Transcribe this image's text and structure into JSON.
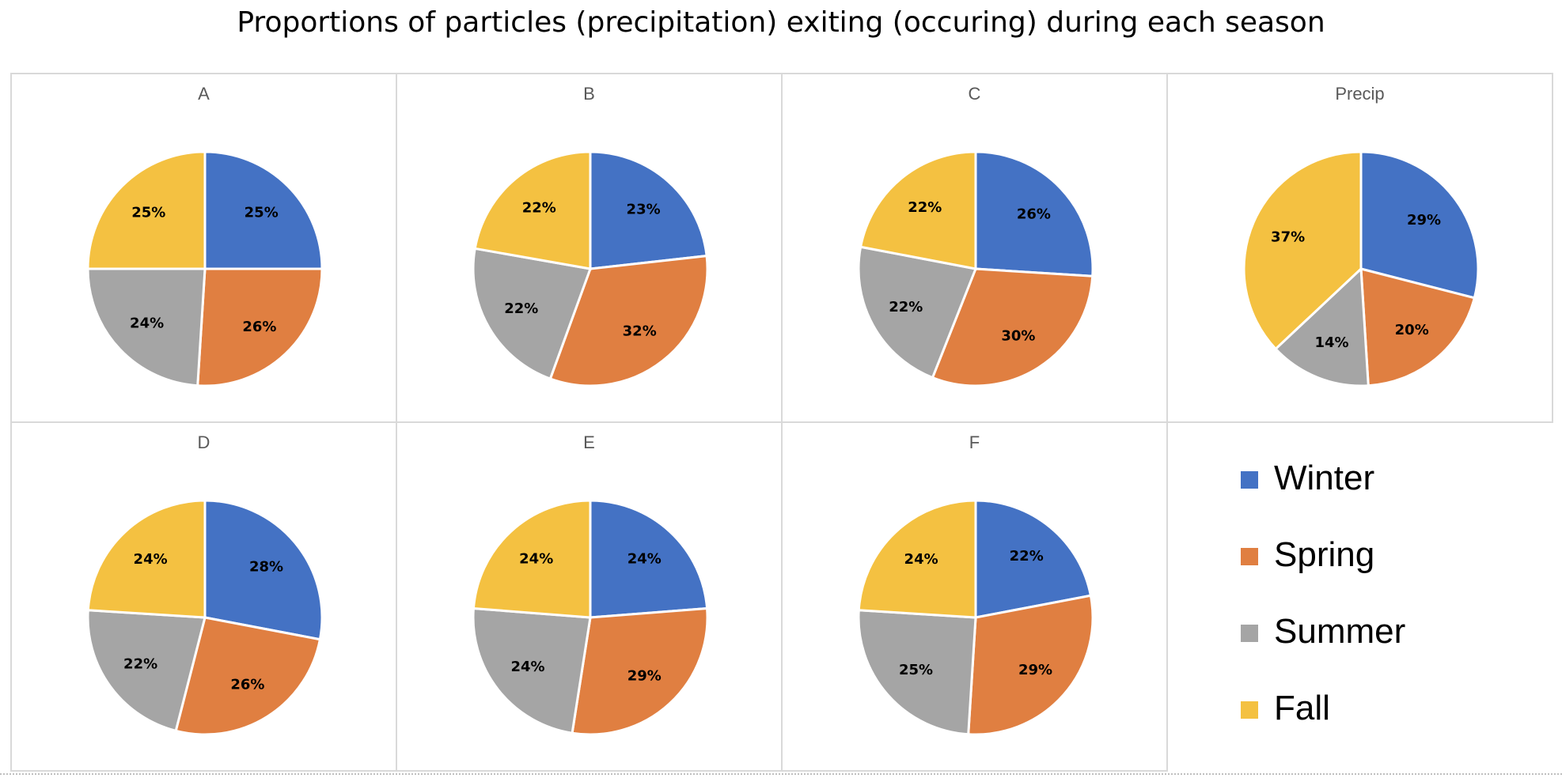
{
  "title": "Proportions of particles (precipitation) exiting (occuring) during each season",
  "series_colors": {
    "Winter": "#4472C4",
    "Spring": "#E07F41",
    "Summer": "#A5A5A5",
    "Fall": "#F4C141"
  },
  "legend": {
    "placement": "bottom-right",
    "items": [
      "Winter",
      "Spring",
      "Summer",
      "Fall"
    ]
  },
  "chart_data": [
    {
      "type": "pie",
      "title": "A",
      "categories": [
        "Winter",
        "Spring",
        "Summer",
        "Fall"
      ],
      "values": [
        25,
        26,
        24,
        25
      ],
      "labels": [
        "25%",
        "26%",
        "24%",
        "25%"
      ]
    },
    {
      "type": "pie",
      "title": "B",
      "categories": [
        "Winter",
        "Spring",
        "Summer",
        "Fall"
      ],
      "values": [
        23,
        32,
        22,
        22
      ],
      "labels": [
        "23%",
        "32%",
        "22%",
        "22%"
      ]
    },
    {
      "type": "pie",
      "title": "C",
      "categories": [
        "Winter",
        "Spring",
        "Summer",
        "Fall"
      ],
      "values": [
        26,
        30,
        22,
        22
      ],
      "labels": [
        "26%",
        "30%",
        "22%",
        "22%"
      ]
    },
    {
      "type": "pie",
      "title": "Precip",
      "categories": [
        "Winter",
        "Spring",
        "Summer",
        "Fall"
      ],
      "values": [
        29,
        20,
        14,
        37
      ],
      "labels": [
        "29%",
        "20%",
        "14%",
        "37%"
      ]
    },
    {
      "type": "pie",
      "title": "D",
      "categories": [
        "Winter",
        "Spring",
        "Summer",
        "Fall"
      ],
      "values": [
        28,
        26,
        22,
        24
      ],
      "labels": [
        "28%",
        "26%",
        "22%",
        "24%"
      ]
    },
    {
      "type": "pie",
      "title": "E",
      "categories": [
        "Winter",
        "Spring",
        "Summer",
        "Fall"
      ],
      "values": [
        24,
        29,
        24,
        24
      ],
      "labels": [
        "24%",
        "29%",
        "24%",
        "24%"
      ]
    },
    {
      "type": "pie",
      "title": "F",
      "categories": [
        "Winter",
        "Spring",
        "Summer",
        "Fall"
      ],
      "values": [
        22,
        29,
        25,
        24
      ],
      "labels": [
        "22%",
        "29%",
        "25%",
        "24%"
      ]
    }
  ]
}
